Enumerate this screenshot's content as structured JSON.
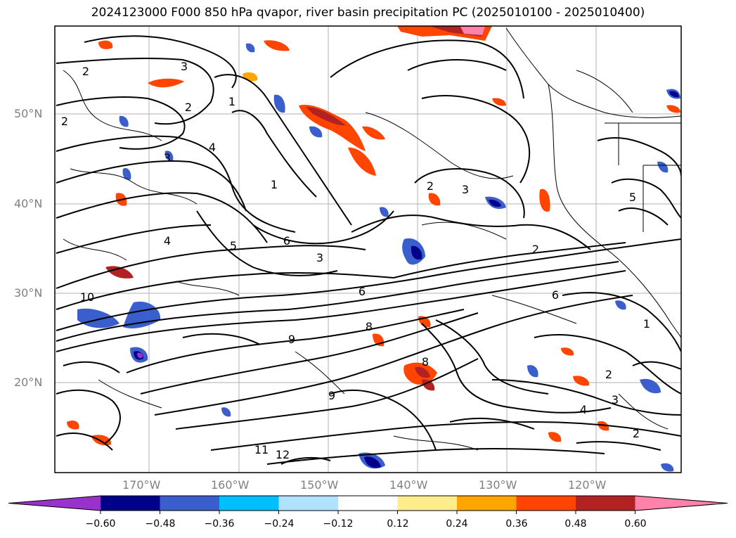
{
  "title": "2024123000 F000 850 hPa qvapor, river basin precipitation PC (2025010100 - 2025010400)",
  "lat_labels": [
    "50°N",
    "40°N",
    "30°N",
    "20°N"
  ],
  "lon_labels": [
    "170°W",
    "160°W",
    "150°W",
    "140°W",
    "130°W",
    "120°W"
  ],
  "colorbar": {
    "ticks": [
      "−0.60",
      "−0.48",
      "−0.36",
      "−0.24",
      "−0.12",
      "0.12",
      "0.24",
      "0.36",
      "0.48",
      "0.60"
    ],
    "colors": [
      "#9932cc",
      "#00008b",
      "#3a5fcd",
      "#00bfff",
      "#b0e2ff",
      "#ffffff",
      "#ffec8b",
      "#ffa500",
      "#ff4500",
      "#b22222",
      "#ff82ab"
    ]
  },
  "contour_labels": [
    "2",
    "3",
    "2",
    "1",
    "2",
    "3",
    "4",
    "1",
    "2",
    "4",
    "6",
    "3",
    "2",
    "6",
    "8",
    "5",
    "9",
    "10",
    "12",
    "11",
    "9",
    "8",
    "4",
    "3",
    "2",
    "1",
    "2",
    "3",
    "5",
    "6"
  ]
}
